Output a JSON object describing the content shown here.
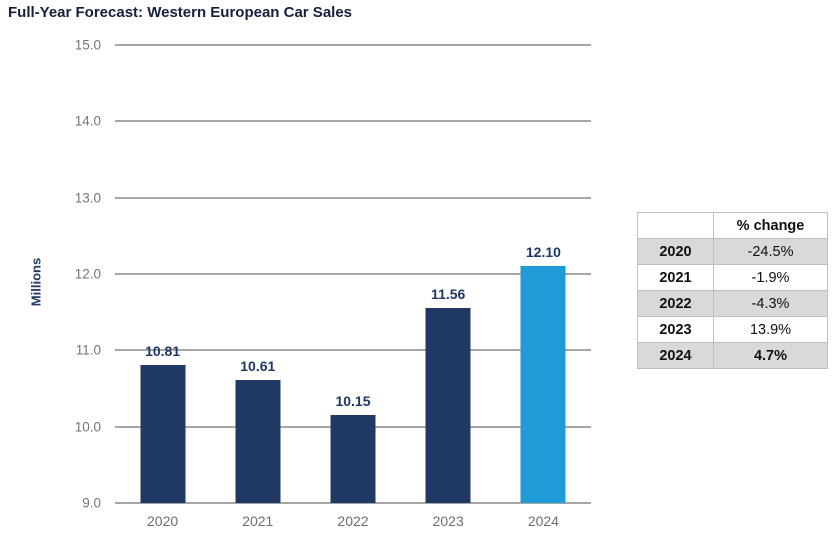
{
  "title": "Full-Year Forecast: Western European Car Sales",
  "chart_data": {
    "type": "bar",
    "title": "Full-Year Forecast: Western European Car Sales",
    "categories": [
      "2020",
      "2021",
      "2022",
      "2023",
      "2024"
    ],
    "values": [
      10.81,
      10.61,
      10.15,
      11.56,
      12.1
    ],
    "value_labels": [
      "10.81",
      "10.61",
      "10.15",
      "11.56",
      "12.10"
    ],
    "xlabel": "",
    "ylabel": "Millions",
    "ylim": [
      9.0,
      15.0
    ],
    "yticks": [
      9.0,
      10.0,
      11.0,
      12.0,
      13.0,
      14.0,
      15.0
    ],
    "ytick_labels": [
      "9.0",
      "10.0",
      "11.0",
      "12.0",
      "13.0",
      "14.0",
      "15.0"
    ],
    "grid": true,
    "legend": "none",
    "bar_colors": [
      "#1F3864",
      "#1F3864",
      "#1F3864",
      "#1F3864",
      "#1F9BD8"
    ],
    "highlight_index": 4
  },
  "table": {
    "header": [
      "",
      "% change"
    ],
    "rows": [
      {
        "year": "2020",
        "change": "-24.5%"
      },
      {
        "year": "2021",
        "change": "-1.9%"
      },
      {
        "year": "2022",
        "change": "-4.3%"
      },
      {
        "year": "2023",
        "change": "13.9%"
      },
      {
        "year": "2024",
        "change": "4.7%"
      }
    ]
  },
  "colors": {
    "bar_navy": "#1F3864",
    "bar_highlight": "#1F9BD8",
    "gridline": "#A6A6A6",
    "axis_text": "#757575",
    "value_label": "#1F3864",
    "table_border": "#BFBFBF",
    "table_shade": "#D9D9D9"
  }
}
